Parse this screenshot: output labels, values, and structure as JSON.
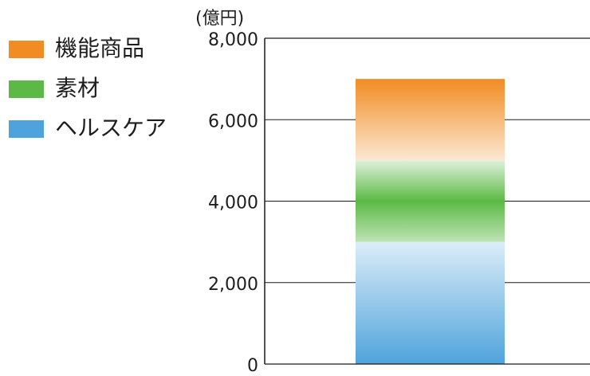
{
  "chart_data": {
    "type": "bar",
    "stacked": true,
    "categories": [
      ""
    ],
    "unit_label": "(億円)",
    "ylim": [
      0,
      8000
    ],
    "yticks": [
      0,
      2000,
      4000,
      6000,
      8000
    ],
    "ytick_labels": [
      "0",
      "2,000",
      "4,000",
      "6,000",
      "8,000"
    ],
    "series": [
      {
        "name": "ヘルスケア",
        "values": [
          3000
        ],
        "color": "#4fa3dc"
      },
      {
        "name": "素材",
        "values": [
          2000
        ],
        "color": "#5cb945"
      },
      {
        "name": "機能商品",
        "values": [
          2000
        ],
        "color": "#f18c22"
      }
    ],
    "legend": {
      "position": "top-left",
      "order": [
        "機能商品",
        "素材",
        "ヘルスケア"
      ]
    },
    "grid": true
  }
}
